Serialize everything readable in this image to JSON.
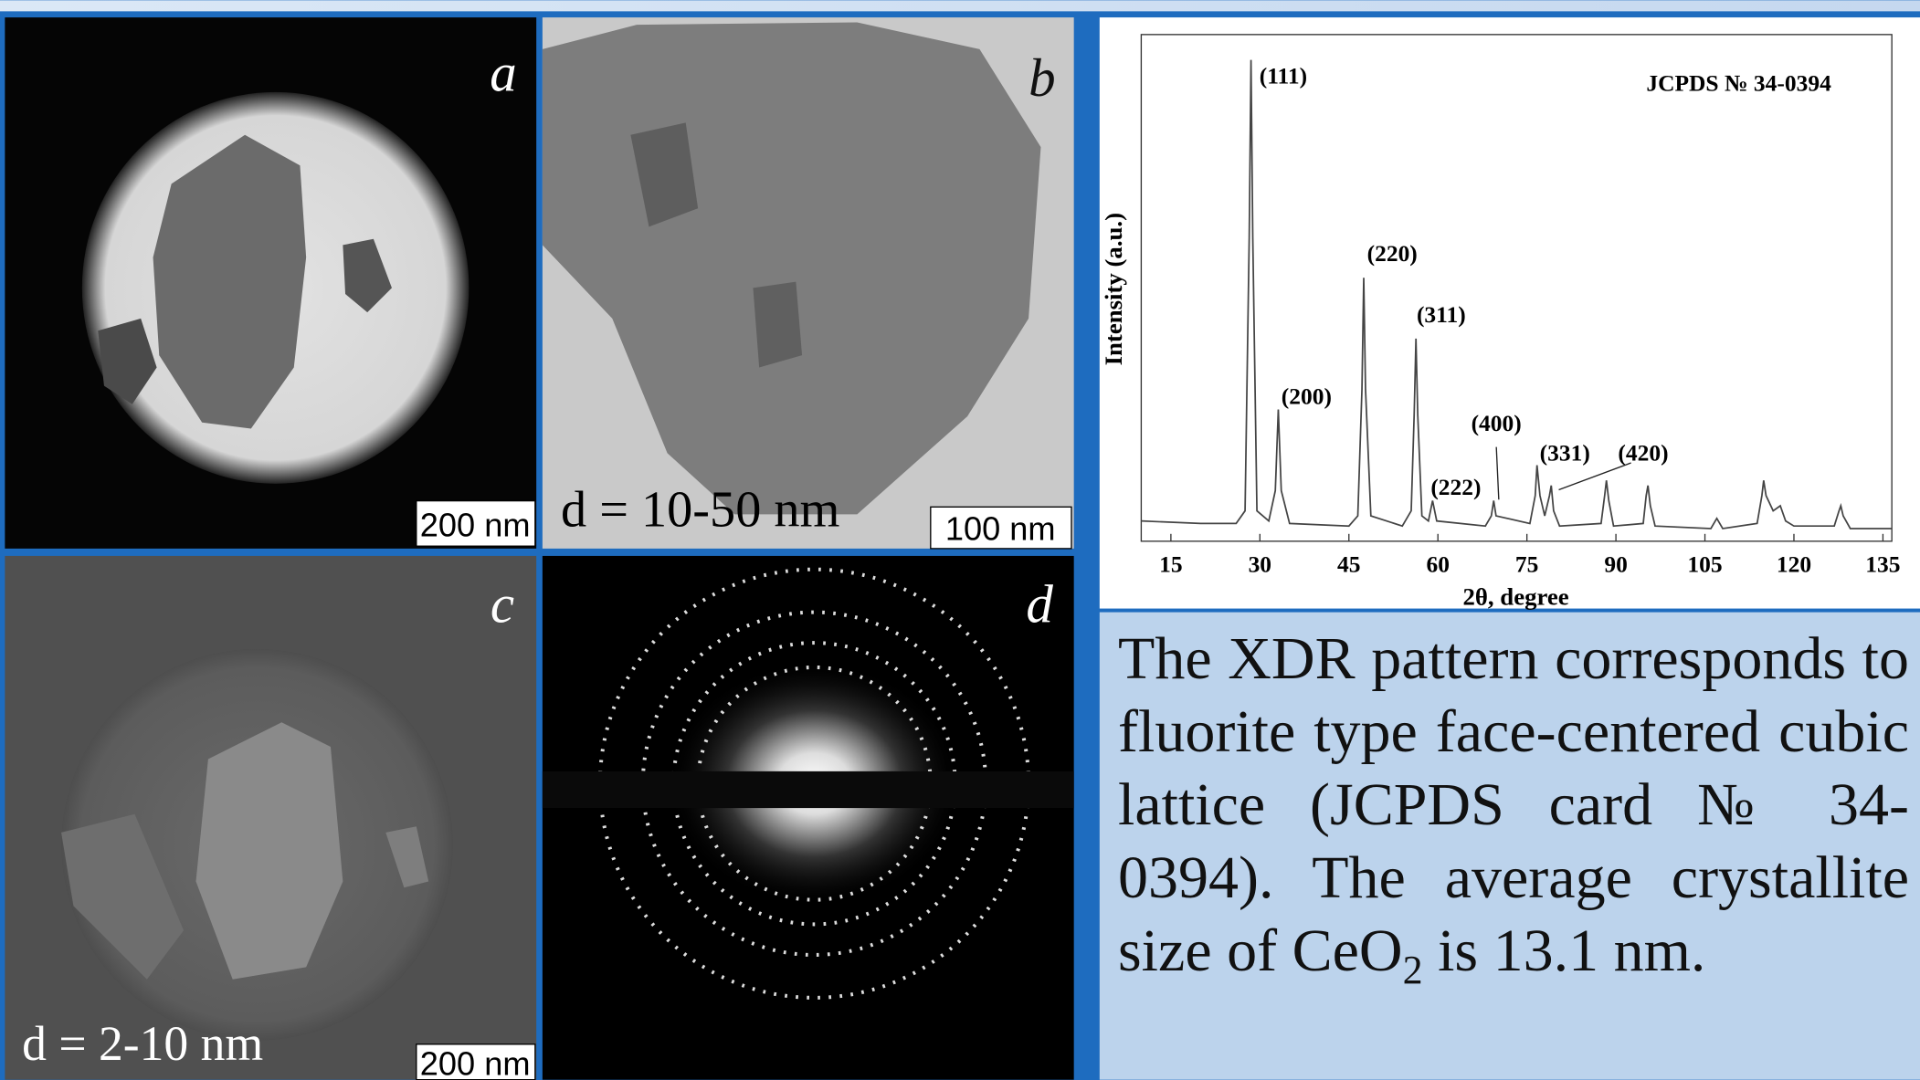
{
  "panels": [
    {
      "label": "a",
      "scale_bar": "200 nm"
    },
    {
      "label": "b",
      "scale_bar": "100 nm",
      "size_note": "d = 10-50 nm"
    },
    {
      "label": "c",
      "scale_bar": "200 nm",
      "size_note": "d = 2-10 nm"
    },
    {
      "label": "d"
    }
  ],
  "chart_data": {
    "type": "line",
    "title": "JCPDS № 34-0394",
    "x_label": "2θ, degree",
    "y_label": "Intensity (a.u.)",
    "annotations": [
      "(111)",
      "(200)",
      "(220)",
      "(311)",
      "(222)",
      "(400)",
      "(331)",
      "(420)"
    ],
    "color": "#444444",
    "x": [
      10,
      20,
      26,
      27.5,
      28.2,
      28.5,
      28.8,
      29.5,
      31.5,
      32.6,
      33.1,
      33.6,
      35,
      45,
      46.5,
      47.2,
      47.5,
      47.8,
      48.7,
      54,
      55.5,
      56,
      56.3,
      56.6,
      57.3,
      58.4,
      59.1,
      59.8,
      68,
      69,
      69.4,
      69.8,
      75.5,
      76.4,
      76.7,
      77.2,
      78,
      78.8,
      79.1,
      79.5,
      80.5,
      87.5,
      88.1,
      88.4,
      88.8,
      89.6,
      94.6,
      95.1,
      95.4,
      95.8,
      96.6,
      106,
      107,
      108,
      113.8,
      114.6,
      114.9,
      115.3,
      116.5,
      117.7,
      118.6,
      120,
      126.8,
      127.6,
      127.9,
      128.3,
      129.5,
      136.5
    ],
    "values": [
      4,
      3.5,
      3.5,
      6,
      60,
      95,
      60,
      6,
      4,
      10,
      26,
      10,
      3.5,
      3,
      5,
      30,
      52,
      30,
      5,
      3,
      6,
      25,
      40,
      25,
      5,
      4,
      8,
      4,
      3,
      5,
      8,
      5,
      3.5,
      9,
      15,
      9,
      5,
      9,
      11,
      6,
      3,
      3.5,
      9,
      12,
      8,
      3,
      3.5,
      9,
      11,
      7,
      3,
      2.5,
      4.5,
      2.5,
      3.5,
      9,
      12,
      9,
      6,
      7,
      4,
      3,
      3,
      6,
      7,
      5,
      2.5,
      2.5
    ],
    "xlim": [
      10,
      136.5
    ],
    "ylim": [
      0,
      100
    ],
    "xticks": [
      15,
      30,
      45,
      60,
      75,
      90,
      105,
      120,
      135
    ]
  },
  "caption": {
    "text_before": "The XDR pattern corresponds to fluorite type face-centered cubic lattice (JCPDS card № 34-0394). The average crystallite size of CeO",
    "subscript": "2",
    "text_after": " is 13.1 nm."
  }
}
